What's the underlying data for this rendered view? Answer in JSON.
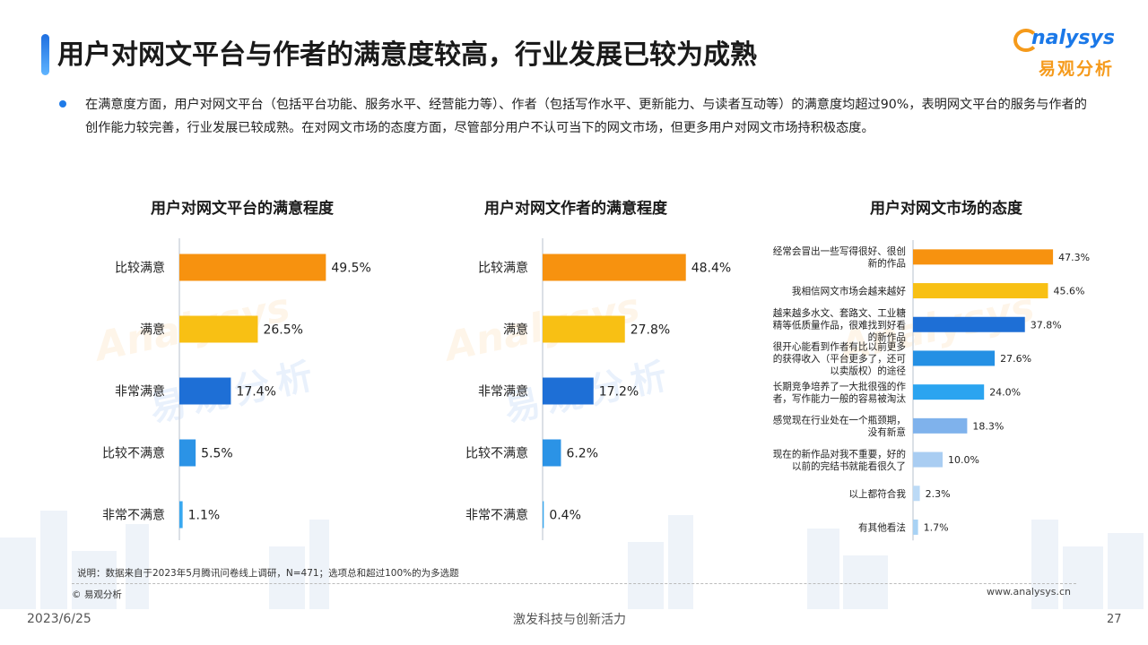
{
  "title": "用户对网文平台与作者的满意度较高，行业发展已较为成熟",
  "logo": {
    "main": "nalysys",
    "sub": "易观分析"
  },
  "intro": "在满意度方面，用户对网文平台（包括平台功能、服务水平、经营能力等）、作者（包括写作水平、更新能力、与读者互动等）的满意度均超过90%，表明网文平台的服务与作者的创作能力较完善，行业发展已较成熟。在对网文市场的态度方面，尽管部分用户不认可当下的网文市场，但更多用户对网文市场持积极态度。",
  "chart_data": [
    {
      "type": "bar",
      "orientation": "horizontal",
      "title": "用户对网文平台的满意程度",
      "categories": [
        "比较满意",
        "满意",
        "非常满意",
        "比较不满意",
        "非常不满意"
      ],
      "values": [
        49.5,
        26.5,
        17.4,
        5.5,
        1.1
      ],
      "value_labels": [
        "49.5%",
        "26.5%",
        "17.4%",
        "5.5%",
        "1.1%"
      ],
      "colors": [
        "#f7920f",
        "#f8c014",
        "#1e6fd6",
        "#2b93e6",
        "#38a8f0"
      ],
      "xlim": [
        0,
        100
      ],
      "grid": false
    },
    {
      "type": "bar",
      "orientation": "horizontal",
      "title": "用户对网文作者的满意程度",
      "categories": [
        "比较满意",
        "满意",
        "非常满意",
        "比较不满意",
        "非常不满意"
      ],
      "values": [
        48.4,
        27.8,
        17.2,
        6.2,
        0.4
      ],
      "value_labels": [
        "48.4%",
        "27.8%",
        "17.2%",
        "6.2%",
        "0.4%"
      ],
      "colors": [
        "#f7920f",
        "#f8c014",
        "#1e6fd6",
        "#2b93e6",
        "#38a8f0"
      ],
      "xlim": [
        0,
        100
      ],
      "grid": false
    },
    {
      "type": "bar",
      "orientation": "horizontal",
      "title": "用户对网文市场的态度",
      "categories": [
        [
          "经常会冒出一些写得很好、很创",
          "新的作品"
        ],
        [
          "我相信网文市场会越来越好"
        ],
        [
          "越来越多水文、套路文、工业糖",
          "精等低质量作品，很难找到好看",
          "的新作品"
        ],
        [
          "很开心能看到作者有比以前更多",
          "的获得收入（平台更多了，还可",
          "以卖版权）的途径"
        ],
        [
          "长期竞争培养了一大批很强的作",
          "者，写作能力一般的容易被淘汰"
        ],
        [
          "感觉现在行业处在一个瓶颈期，",
          "没有新意"
        ],
        [
          "现在的新作品对我不重要，好的",
          "以前的完结书就能看很久了"
        ],
        [
          "以上都符合我"
        ],
        [
          "有其他看法"
        ]
      ],
      "values": [
        47.3,
        45.6,
        37.8,
        27.6,
        24.0,
        18.3,
        10.0,
        2.3,
        1.7
      ],
      "value_labels": [
        "47.3%",
        "45.6%",
        "37.8%",
        "27.6%",
        "24.0%",
        "18.3%",
        "10.0%",
        "2.3%",
        "1.7%"
      ],
      "colors": [
        "#f7920f",
        "#f8c014",
        "#1e6fd6",
        "#2490e4",
        "#2ba4f0",
        "#7fb2ec",
        "#a9cdf2",
        "#bcdaf6",
        "#a8d2f4"
      ],
      "xlim": [
        0,
        100
      ],
      "grid": false
    }
  ],
  "note": "说明：数据来自于2023年5月腾讯问卷线上调研，N=471；选项总和超过100%的为多选题",
  "copyright": "© 易观分析",
  "url": "www.analysys.cn",
  "footer": {
    "date": "2023/6/25",
    "slogan": "激发科技与创新活力",
    "page": "27"
  }
}
